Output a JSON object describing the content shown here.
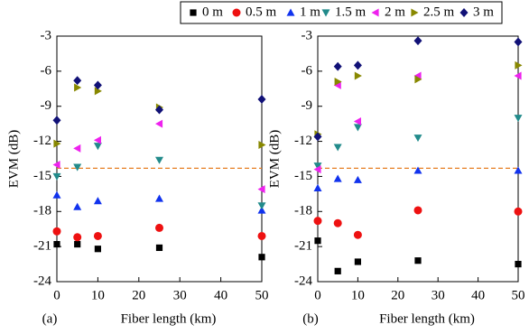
{
  "chart_data": [
    {
      "type": "scatter",
      "label": "(a)",
      "xlabel": "Fiber length (km)",
      "ylabel": "EVM (dB)",
      "x": [
        0,
        5,
        10,
        25,
        50
      ],
      "xlim": [
        0,
        50
      ],
      "xticks": [
        0,
        10,
        20,
        30,
        40,
        50
      ],
      "ylim": [
        -24,
        -3
      ],
      "yticks": [
        -3,
        -6,
        -9,
        -12,
        -15,
        -18,
        -21,
        -24
      ],
      "reference_line": -14.3,
      "reference_color": "#e67e22",
      "series": [
        {
          "name": "0 m",
          "color": "#000000",
          "marker": "square",
          "values": [
            -20.8,
            -20.8,
            -21.2,
            -21.1,
            -21.9
          ]
        },
        {
          "name": "0.5 m",
          "color": "#ee1111",
          "marker": "circle",
          "values": [
            -19.7,
            -20.2,
            -20.1,
            -19.4,
            -20.1
          ]
        },
        {
          "name": "1 m",
          "color": "#1133ee",
          "marker": "triangle-up",
          "values": [
            -16.6,
            -17.6,
            -17.1,
            -16.9,
            -17.9
          ]
        },
        {
          "name": "1.5 m",
          "color": "#228b8b",
          "marker": "triangle-down",
          "values": [
            -15.0,
            -14.2,
            -12.4,
            -13.6,
            -17.5
          ]
        },
        {
          "name": "2 m",
          "color": "#ee22ee",
          "marker": "triangle-left",
          "values": [
            -14.0,
            -12.6,
            -11.9,
            -10.5,
            -16.1
          ]
        },
        {
          "name": "2.5 m",
          "color": "#888800",
          "marker": "triangle-right",
          "values": [
            -12.2,
            -7.4,
            -7.7,
            -9.1,
            -12.3
          ]
        },
        {
          "name": "3 m",
          "color": "#111177",
          "marker": "diamond",
          "values": [
            -10.2,
            -6.8,
            -7.2,
            -9.3,
            -8.4
          ]
        }
      ]
    },
    {
      "type": "scatter",
      "label": "(b)",
      "xlabel": "Fiber length (km)",
      "ylabel": "EVM (dB)",
      "x": [
        0,
        5,
        10,
        25,
        50
      ],
      "xlim": [
        0,
        50
      ],
      "xticks": [
        0,
        10,
        20,
        30,
        40,
        50
      ],
      "ylim": [
        -24,
        -3
      ],
      "yticks": [
        -3,
        -6,
        -9,
        -12,
        -15,
        -18,
        -21,
        -24
      ],
      "reference_line": -14.3,
      "reference_color": "#e67e22",
      "series": [
        {
          "color": "#000000",
          "marker": "square",
          "values": [
            -20.5,
            -23.1,
            -22.3,
            -22.2,
            -22.5
          ]
        },
        {
          "color": "#ee1111",
          "marker": "circle",
          "values": [
            -18.8,
            -19.0,
            -20.0,
            -17.9,
            -18.0
          ]
        },
        {
          "color": "#1133ee",
          "marker": "triangle-up",
          "values": [
            -16.0,
            -15.2,
            -15.3,
            -14.5,
            -14.5
          ]
        },
        {
          "color": "#228b8b",
          "marker": "triangle-down",
          "values": [
            -14.1,
            -12.5,
            -10.8,
            -11.7,
            -10.0
          ]
        },
        {
          "color": "#ee22ee",
          "marker": "triangle-left",
          "values": [
            -14.4,
            -7.2,
            -10.3,
            -6.4,
            -6.4
          ]
        },
        {
          "color": "#888800",
          "marker": "triangle-right",
          "values": [
            -11.4,
            -6.9,
            -6.4,
            -6.7,
            -5.5
          ]
        },
        {
          "color": "#111177",
          "marker": "diamond",
          "values": [
            -11.6,
            -5.6,
            -5.5,
            -3.4,
            -3.5
          ]
        }
      ]
    }
  ]
}
